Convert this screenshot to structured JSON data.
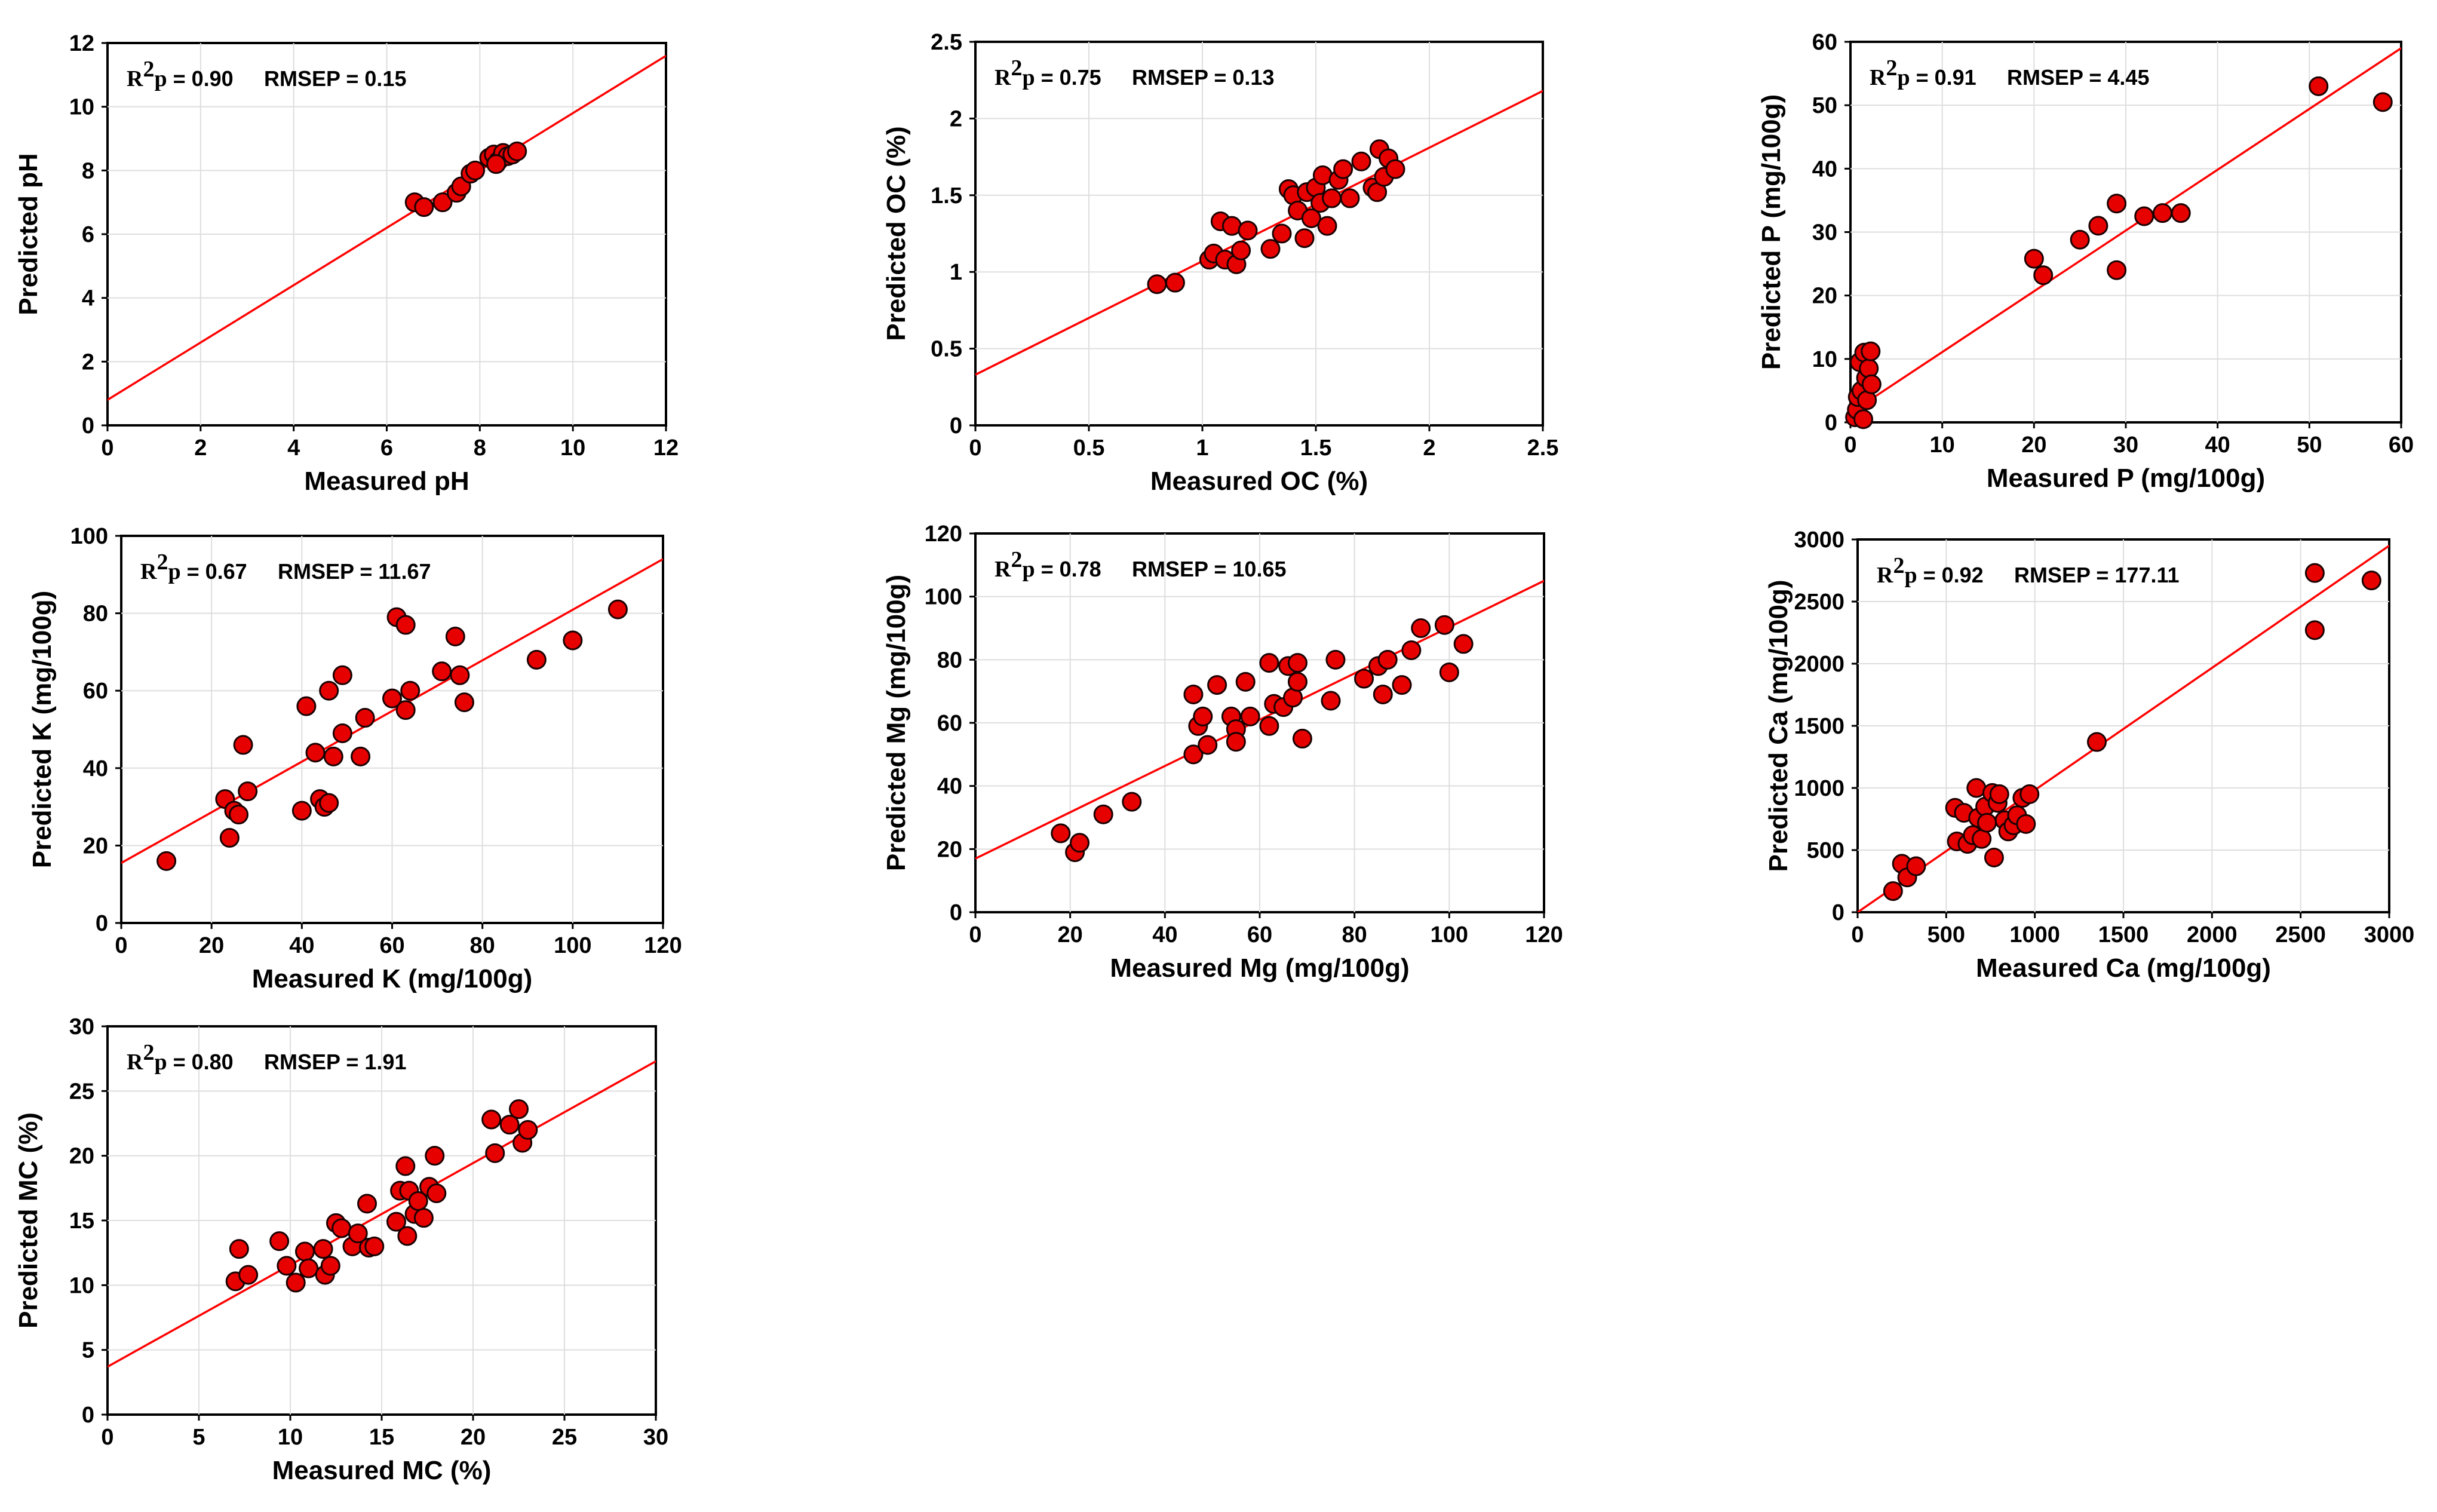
{
  "accent_line_color": "#ff0000",
  "marker_fill": "#e60000",
  "marker_stroke": "#1a0000",
  "chart_data": [
    {
      "id": "ph",
      "type": "scatter",
      "title": "",
      "xlabel": "Measured pH",
      "ylabel": "Predicted pH",
      "xlim": [
        0,
        12
      ],
      "ylim": [
        0,
        12
      ],
      "xticks": [
        0,
        2,
        4,
        6,
        8,
        10,
        12
      ],
      "yticks": [
        0,
        2,
        4,
        6,
        8,
        10,
        12
      ],
      "xtick_labels": [
        "0",
        "2",
        "4",
        "6",
        "8",
        "10",
        "12"
      ],
      "ytick_labels": [
        "0",
        "2",
        "4",
        "6",
        "8",
        "10",
        "12"
      ],
      "annotation": {
        "r2p_label": "R",
        "r2p_sup": "2",
        "r2p_sub": "p",
        "r2p_value": " = 0.90",
        "rmsep_text": "RMSEP = 0.15"
      },
      "fit_line": {
        "x": [
          0,
          12
        ],
        "y": [
          0.8,
          11.6
        ]
      },
      "points": [
        [
          6.6,
          7.0
        ],
        [
          6.8,
          6.85
        ],
        [
          7.2,
          7.0
        ],
        [
          7.5,
          7.3
        ],
        [
          7.6,
          7.5
        ],
        [
          7.8,
          7.9
        ],
        [
          7.9,
          8.0
        ],
        [
          8.2,
          8.4
        ],
        [
          8.3,
          8.5
        ],
        [
          8.4,
          8.3
        ],
        [
          8.5,
          8.55
        ],
        [
          8.6,
          8.45
        ],
        [
          8.7,
          8.5
        ],
        [
          8.8,
          8.6
        ],
        [
          8.35,
          8.2
        ]
      ]
    },
    {
      "id": "oc",
      "type": "scatter",
      "title": "",
      "xlabel": "Measured OC (%)",
      "ylabel": "Predicted OC (%)",
      "xlim": [
        0,
        2.5
      ],
      "ylim": [
        0,
        2.5
      ],
      "xticks": [
        0,
        0.5,
        1,
        1.5,
        2,
        2.5
      ],
      "yticks": [
        0,
        0.5,
        1,
        1.5,
        2,
        2.5
      ],
      "xtick_labels": [
        "0",
        "0.5",
        "1",
        "1.5",
        "2",
        "2.5"
      ],
      "ytick_labels": [
        "0",
        "0.5",
        "1",
        "1.5",
        "2",
        "2.5"
      ],
      "annotation": {
        "r2p_label": "R",
        "r2p_sup": "2",
        "r2p_sub": "p",
        "r2p_value": " = 0.75",
        "rmsep_text": "RMSEP = 0.13"
      },
      "fit_line": {
        "x": [
          0,
          2.5
        ],
        "y": [
          0.33,
          2.18
        ]
      },
      "points": [
        [
          0.8,
          0.92
        ],
        [
          0.88,
          0.93
        ],
        [
          1.03,
          1.08
        ],
        [
          1.05,
          1.12
        ],
        [
          1.08,
          1.33
        ],
        [
          1.1,
          1.08
        ],
        [
          1.13,
          1.3
        ],
        [
          1.15,
          1.05
        ],
        [
          1.17,
          1.14
        ],
        [
          1.2,
          1.27
        ],
        [
          1.3,
          1.15
        ],
        [
          1.35,
          1.25
        ],
        [
          1.38,
          1.54
        ],
        [
          1.4,
          1.5
        ],
        [
          1.42,
          1.4
        ],
        [
          1.45,
          1.22
        ],
        [
          1.46,
          1.52
        ],
        [
          1.48,
          1.35
        ],
        [
          1.5,
          1.55
        ],
        [
          1.52,
          1.45
        ],
        [
          1.53,
          1.63
        ],
        [
          1.55,
          1.3
        ],
        [
          1.57,
          1.48
        ],
        [
          1.6,
          1.6
        ],
        [
          1.62,
          1.67
        ],
        [
          1.65,
          1.48
        ],
        [
          1.7,
          1.72
        ],
        [
          1.75,
          1.55
        ],
        [
          1.77,
          1.52
        ],
        [
          1.78,
          1.8
        ],
        [
          1.8,
          1.62
        ],
        [
          1.82,
          1.74
        ],
        [
          1.85,
          1.67
        ]
      ]
    },
    {
      "id": "p",
      "type": "scatter",
      "title": "",
      "xlabel": "Measured P (mg/100g)",
      "ylabel": "Predicted P (mg/100g)",
      "xlim": [
        0,
        60
      ],
      "ylim": [
        0,
        60
      ],
      "xticks": [
        0,
        10,
        20,
        30,
        40,
        50,
        60
      ],
      "yticks": [
        0,
        10,
        20,
        30,
        40,
        50,
        60
      ],
      "xtick_labels": [
        "0",
        "10",
        "20",
        "30",
        "40",
        "50",
        "60"
      ],
      "ytick_labels": [
        "0",
        "10",
        "20",
        "30",
        "40",
        "50",
        "60"
      ],
      "annotation": {
        "r2p_label": "R",
        "r2p_sup": "2",
        "r2p_sub": "p",
        "r2p_value": " = 0.91",
        "rmsep_text": "RMSEP = 4.45"
      },
      "fit_line": {
        "x": [
          0,
          60
        ],
        "y": [
          1.5,
          59.0
        ]
      },
      "points": [
        [
          0.5,
          0.8
        ],
        [
          0.7,
          2.0
        ],
        [
          0.8,
          4.0
        ],
        [
          1.0,
          9.5
        ],
        [
          1.2,
          5.0
        ],
        [
          1.4,
          0.5
        ],
        [
          1.5,
          11.0
        ],
        [
          1.7,
          7.0
        ],
        [
          1.8,
          3.5
        ],
        [
          2.0,
          8.5
        ],
        [
          2.2,
          11.2
        ],
        [
          2.3,
          6.0
        ],
        [
          20.0,
          25.8
        ],
        [
          21.0,
          23.2
        ],
        [
          25.0,
          28.8
        ],
        [
          27.0,
          31.0
        ],
        [
          29.0,
          24.0
        ],
        [
          29.0,
          34.5
        ],
        [
          32.0,
          32.5
        ],
        [
          34.0,
          33.0
        ],
        [
          36.0,
          33.0
        ],
        [
          51.0,
          53.0
        ],
        [
          58.0,
          50.5
        ]
      ]
    },
    {
      "id": "k",
      "type": "scatter",
      "title": "",
      "xlabel": "Measured K (mg/100g)",
      "ylabel": "Predicted K (mg/100g)",
      "xlim": [
        0,
        120
      ],
      "ylim": [
        0,
        100
      ],
      "xticks": [
        0,
        20,
        40,
        60,
        80,
        100,
        120
      ],
      "yticks": [
        0,
        20,
        40,
        60,
        80,
        100
      ],
      "xtick_labels": [
        "0",
        "20",
        "40",
        "60",
        "80",
        "100",
        "120"
      ],
      "ytick_labels": [
        "0",
        "20",
        "40",
        "60",
        "80",
        "100"
      ],
      "annotation": {
        "r2p_label": "R",
        "r2p_sup": "2",
        "r2p_sub": "p",
        "r2p_value": " = 0.67",
        "rmsep_text": "RMSEP = 11.67"
      },
      "fit_line": {
        "x": [
          0,
          120
        ],
        "y": [
          15.5,
          94.0
        ]
      },
      "points": [
        [
          10,
          16
        ],
        [
          23,
          32
        ],
        [
          24,
          22
        ],
        [
          25,
          29
        ],
        [
          26,
          28
        ],
        [
          27,
          46
        ],
        [
          28,
          34
        ],
        [
          40,
          29
        ],
        [
          41,
          56
        ],
        [
          43,
          44
        ],
        [
          44,
          32
        ],
        [
          45,
          30
        ],
        [
          46,
          60
        ],
        [
          46,
          31
        ],
        [
          47,
          43
        ],
        [
          49,
          49
        ],
        [
          49,
          64
        ],
        [
          53,
          43
        ],
        [
          54,
          53
        ],
        [
          60,
          58
        ],
        [
          61,
          79
        ],
        [
          63,
          77
        ],
        [
          63,
          55
        ],
        [
          64,
          60
        ],
        [
          71,
          65
        ],
        [
          74,
          74
        ],
        [
          75,
          64
        ],
        [
          76,
          57
        ],
        [
          92,
          68
        ],
        [
          100,
          73
        ],
        [
          110,
          81
        ]
      ]
    },
    {
      "id": "mg",
      "type": "scatter",
      "title": "",
      "xlabel": "Measured Mg (mg/100g)",
      "ylabel": "Predicted Mg (mg/100g)",
      "xlim": [
        0,
        120
      ],
      "ylim": [
        0,
        120
      ],
      "xticks": [
        0,
        20,
        40,
        60,
        80,
        100,
        120
      ],
      "yticks": [
        0,
        20,
        40,
        60,
        80,
        100,
        120
      ],
      "xtick_labels": [
        "0",
        "20",
        "40",
        "60",
        "80",
        "100",
        "120"
      ],
      "ytick_labels": [
        "0",
        "20",
        "40",
        "60",
        "80",
        "100",
        "120"
      ],
      "annotation": {
        "r2p_label": "R",
        "r2p_sup": "2",
        "r2p_sub": "p",
        "r2p_value": " = 0.78",
        "rmsep_text": "RMSEP = 10.65"
      },
      "fit_line": {
        "x": [
          0,
          120
        ],
        "y": [
          17.0,
          105.0
        ]
      },
      "points": [
        [
          18,
          25
        ],
        [
          21,
          19
        ],
        [
          22,
          22
        ],
        [
          27,
          31
        ],
        [
          33,
          35
        ],
        [
          46,
          50
        ],
        [
          46,
          69
        ],
        [
          47,
          59
        ],
        [
          48,
          62
        ],
        [
          49,
          53
        ],
        [
          51,
          72
        ],
        [
          54,
          62
        ],
        [
          55,
          58
        ],
        [
          55,
          54
        ],
        [
          57,
          73
        ],
        [
          58,
          62
        ],
        [
          62,
          59
        ],
        [
          62,
          79
        ],
        [
          63,
          66
        ],
        [
          65,
          65
        ],
        [
          66,
          78
        ],
        [
          67,
          68
        ],
        [
          68,
          79
        ],
        [
          68,
          73
        ],
        [
          69,
          55
        ],
        [
          75,
          67
        ],
        [
          76,
          80
        ],
        [
          82,
          74
        ],
        [
          85,
          78
        ],
        [
          86,
          69
        ],
        [
          87,
          80
        ],
        [
          90,
          72
        ],
        [
          92,
          83
        ],
        [
          94,
          90
        ],
        [
          99,
          91
        ],
        [
          100,
          76
        ],
        [
          103,
          85
        ]
      ]
    },
    {
      "id": "ca",
      "type": "scatter",
      "title": "",
      "xlabel": "Measured Ca (mg/100g)",
      "ylabel": "Predicted Ca (mg/100g)",
      "xlim": [
        0,
        3000
      ],
      "ylim": [
        0,
        3000
      ],
      "xticks": [
        0,
        500,
        1000,
        1500,
        2000,
        2500,
        3000
      ],
      "yticks": [
        0,
        500,
        1000,
        1500,
        2000,
        2500,
        3000
      ],
      "xtick_labels": [
        "0",
        "500",
        "1000",
        "1500",
        "2000",
        "2500",
        "3000"
      ],
      "ytick_labels": [
        "0",
        "500",
        "1000",
        "1500",
        "2000",
        "2500",
        "3000"
      ],
      "annotation": {
        "r2p_label": "R",
        "r2p_sup": "2",
        "r2p_sub": "p",
        "r2p_value": " = 0.92",
        "rmsep_text": "RMSEP = 177.11"
      },
      "fit_line": {
        "x": [
          0,
          3000
        ],
        "y": [
          0,
          2950
        ]
      },
      "points": [
        [
          200,
          170
        ],
        [
          250,
          390
        ],
        [
          280,
          280
        ],
        [
          330,
          370
        ],
        [
          550,
          840
        ],
        [
          560,
          570
        ],
        [
          600,
          800
        ],
        [
          620,
          550
        ],
        [
          650,
          620
        ],
        [
          670,
          1000
        ],
        [
          680,
          760
        ],
        [
          700,
          590
        ],
        [
          720,
          850
        ],
        [
          730,
          720
        ],
        [
          760,
          960
        ],
        [
          770,
          440
        ],
        [
          790,
          880
        ],
        [
          800,
          950
        ],
        [
          830,
          740
        ],
        [
          850,
          650
        ],
        [
          880,
          700
        ],
        [
          900,
          780
        ],
        [
          930,
          920
        ],
        [
          950,
          710
        ],
        [
          970,
          950
        ],
        [
          1350,
          1370
        ],
        [
          2580,
          2730
        ],
        [
          2580,
          2270
        ],
        [
          2900,
          2670
        ]
      ]
    },
    {
      "id": "mc",
      "type": "scatter",
      "title": "",
      "xlabel": "Measured MC (%)",
      "ylabel": "Predicted MC (%)",
      "xlim": [
        0,
        30
      ],
      "ylim": [
        0,
        30
      ],
      "xticks": [
        0,
        5,
        10,
        15,
        20,
        25,
        30
      ],
      "yticks": [
        0,
        5,
        10,
        15,
        20,
        25,
        30
      ],
      "xtick_labels": [
        "0",
        "5",
        "10",
        "15",
        "20",
        "25",
        "30"
      ],
      "ytick_labels": [
        "0",
        "5",
        "10",
        "15",
        "20",
        "25",
        "30"
      ],
      "annotation": {
        "r2p_label": "R",
        "r2p_sup": "2",
        "r2p_sub": "p",
        "r2p_value": " = 0.80",
        "rmsep_text": "RMSEP = 1.91"
      },
      "fit_line": {
        "x": [
          0,
          30
        ],
        "y": [
          3.7,
          27.3
        ]
      },
      "points": [
        [
          7.0,
          10.3
        ],
        [
          7.2,
          12.8
        ],
        [
          7.7,
          10.8
        ],
        [
          9.4,
          13.4
        ],
        [
          9.8,
          11.5
        ],
        [
          10.3,
          10.2
        ],
        [
          10.8,
          12.6
        ],
        [
          11.0,
          11.3
        ],
        [
          11.8,
          12.8
        ],
        [
          11.9,
          10.8
        ],
        [
          12.2,
          11.5
        ],
        [
          12.5,
          14.8
        ],
        [
          12.8,
          14.4
        ],
        [
          13.4,
          13.0
        ],
        [
          13.7,
          14.0
        ],
        [
          14.2,
          16.3
        ],
        [
          14.3,
          12.9
        ],
        [
          14.6,
          13.0
        ],
        [
          15.8,
          14.9
        ],
        [
          16.0,
          17.3
        ],
        [
          16.3,
          19.2
        ],
        [
          16.4,
          13.8
        ],
        [
          16.5,
          17.3
        ],
        [
          16.8,
          15.5
        ],
        [
          17.0,
          16.5
        ],
        [
          17.3,
          15.2
        ],
        [
          17.6,
          17.6
        ],
        [
          17.9,
          20.0
        ],
        [
          18.0,
          17.1
        ],
        [
          21.0,
          22.8
        ],
        [
          21.2,
          20.2
        ],
        [
          22.0,
          22.4
        ],
        [
          22.5,
          23.6
        ],
        [
          22.7,
          21.0
        ],
        [
          23.0,
          22.0
        ]
      ]
    }
  ]
}
